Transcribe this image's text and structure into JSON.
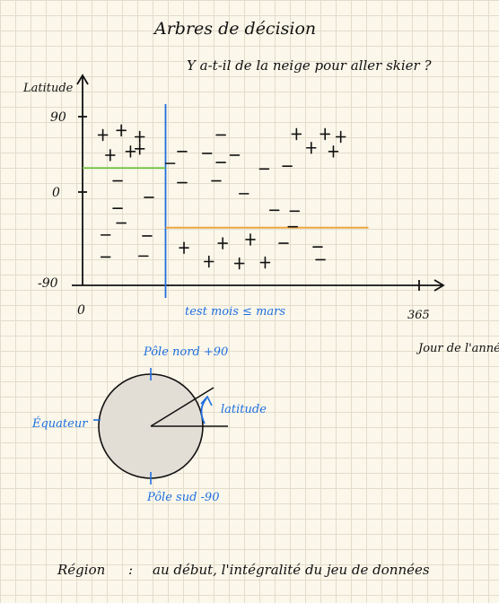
{
  "title": "Arbres de décision",
  "subtitle": "Y a-t-il de la neige pour aller skier ?",
  "chart_data": {
    "type": "scatter",
    "xlabel": "Jour de l'année",
    "ylabel": "Latitude",
    "x_tick_labels": [
      "0",
      "365"
    ],
    "y_tick_labels": [
      "90",
      "0",
      "-90"
    ],
    "xlim": [
      0,
      365
    ],
    "ylim": [
      -90,
      90
    ],
    "grid": false,
    "series": [
      {
        "name": "+",
        "points": [
          [
            22,
            70
          ],
          [
            42,
            75
          ],
          [
            62,
            68
          ],
          [
            62,
            55
          ],
          [
            30,
            48
          ],
          [
            52,
            52
          ],
          [
            232,
            71
          ],
          [
            263,
            71
          ],
          [
            280,
            68
          ],
          [
            248,
            56
          ],
          [
            272,
            52
          ],
          [
            110,
            -53
          ],
          [
            152,
            -48
          ],
          [
            182,
            -44
          ],
          [
            137,
            -68
          ],
          [
            170,
            -70
          ],
          [
            198,
            -69
          ]
        ]
      },
      {
        "name": "−",
        "points": [
          [
            38,
            20
          ],
          [
            72,
            2
          ],
          [
            38,
            -10
          ],
          [
            42,
            -26
          ],
          [
            25,
            -39
          ],
          [
            70,
            -40
          ],
          [
            25,
            -63
          ],
          [
            66,
            -62
          ],
          [
            150,
            70
          ],
          [
            108,
            52
          ],
          [
            135,
            50
          ],
          [
            165,
            48
          ],
          [
            150,
            40
          ],
          [
            95,
            39
          ],
          [
            145,
            20
          ],
          [
            222,
            36
          ],
          [
            197,
            33
          ],
          [
            108,
            18
          ],
          [
            175,
            6
          ],
          [
            208,
            -12
          ],
          [
            230,
            -13
          ],
          [
            228,
            -30
          ],
          [
            218,
            -48
          ],
          [
            255,
            -52
          ],
          [
            258,
            -66
          ]
        ]
      }
    ],
    "splits": [
      {
        "orientation": "vertical",
        "x": 90,
        "color": "#1f6fe0",
        "label": "test mois ≤ mars"
      },
      {
        "orientation": "horizontal",
        "y": 34,
        "x_range": [
          0,
          90
        ],
        "color": "#6abf3a"
      },
      {
        "orientation": "horizontal",
        "y": -31,
        "x_range": [
          90,
          310
        ],
        "color": "#f0a23c"
      }
    ]
  },
  "globe": {
    "north_label": "Pôle nord +90",
    "south_label": "Pôle sud -90",
    "equator_label": "Équateur",
    "angle_label": "latitude",
    "fill_color": "#e2ded6"
  },
  "footer": {
    "left": "Région",
    "separator": ":",
    "right": "au début, l'intégralité du jeu de données"
  }
}
